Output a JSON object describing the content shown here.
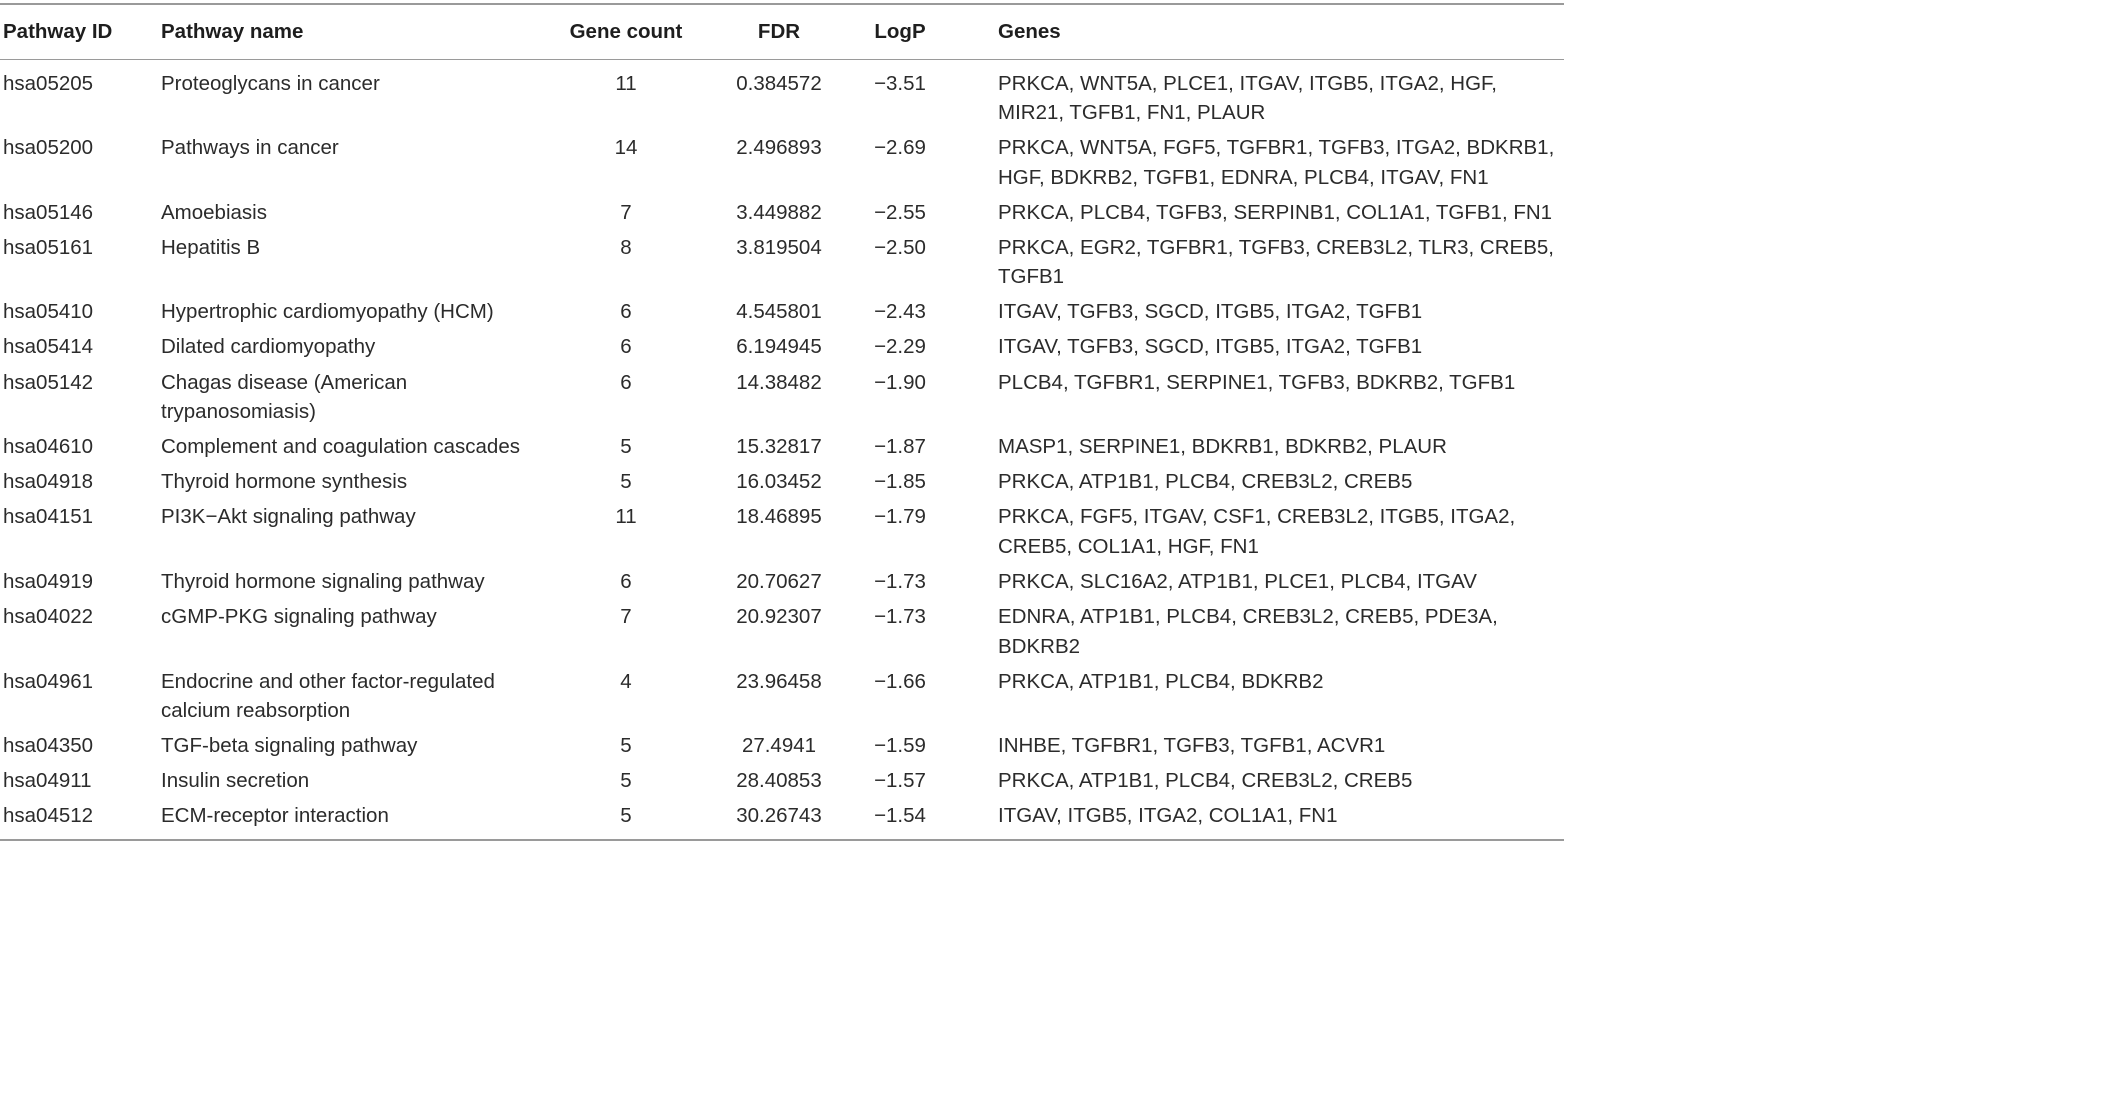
{
  "table": {
    "headers": {
      "id": "Pathway ID",
      "name": "Pathway name",
      "count": "Gene count",
      "fdr": "FDR",
      "logp": "LogP",
      "genes": "Genes"
    },
    "rows": [
      {
        "id": "hsa05205",
        "name": "Proteoglycans in cancer",
        "count": "11",
        "fdr": "0.384572",
        "logp": "−3.51",
        "genes": "PRKCA, WNT5A, PLCE1, ITGAV, ITGB5, ITGA2, HGF, MIR21, TGFB1, FN1, PLAUR"
      },
      {
        "id": "hsa05200",
        "name": "Pathways in cancer",
        "count": "14",
        "fdr": "2.496893",
        "logp": "−2.69",
        "genes": "PRKCA, WNT5A, FGF5, TGFBR1, TGFB3, ITGA2, BDKRB1, HGF, BDKRB2, TGFB1, EDNRA, PLCB4, ITGAV, FN1"
      },
      {
        "id": "hsa05146",
        "name": "Amoebiasis",
        "count": "7",
        "fdr": "3.449882",
        "logp": "−2.55",
        "genes": "PRKCA, PLCB4, TGFB3, SERPINB1, COL1A1, TGFB1, FN1"
      },
      {
        "id": "hsa05161",
        "name": "Hepatitis B",
        "count": "8",
        "fdr": "3.819504",
        "logp": "−2.50",
        "genes": "PRKCA, EGR2, TGFBR1, TGFB3, CREB3L2, TLR3, CREB5, TGFB1"
      },
      {
        "id": "hsa05410",
        "name": "Hypertrophic cardiomyopathy (HCM)",
        "count": "6",
        "fdr": "4.545801",
        "logp": "−2.43",
        "genes": "ITGAV, TGFB3, SGCD, ITGB5, ITGA2, TGFB1"
      },
      {
        "id": "hsa05414",
        "name": "Dilated cardiomyopathy",
        "count": "6",
        "fdr": "6.194945",
        "logp": "−2.29",
        "genes": "ITGAV, TGFB3, SGCD, ITGB5, ITGA2, TGFB1"
      },
      {
        "id": "hsa05142",
        "name": "Chagas disease (American trypanosomiasis)",
        "count": "6",
        "fdr": "14.38482",
        "logp": "−1.90",
        "genes": "PLCB4, TGFBR1, SERPINE1, TGFB3, BDKRB2, TGFB1"
      },
      {
        "id": "hsa04610",
        "name": "Complement and coagulation cascades",
        "count": "5",
        "fdr": "15.32817",
        "logp": "−1.87",
        "genes": "MASP1, SERPINE1, BDKRB1, BDKRB2, PLAUR"
      },
      {
        "id": "hsa04918",
        "name": "Thyroid hormone synthesis",
        "count": "5",
        "fdr": "16.03452",
        "logp": "−1.85",
        "genes": "PRKCA, ATP1B1, PLCB4, CREB3L2, CREB5"
      },
      {
        "id": "hsa04151",
        "name": "PI3K−Akt signaling pathway",
        "count": "11",
        "fdr": "18.46895",
        "logp": "−1.79",
        "genes": "PRKCA, FGF5, ITGAV, CSF1, CREB3L2, ITGB5, ITGA2, CREB5, COL1A1, HGF, FN1"
      },
      {
        "id": "hsa04919",
        "name": "Thyroid hormone signaling pathway",
        "count": "6",
        "fdr": "20.70627",
        "logp": "−1.73",
        "genes": "PRKCA, SLC16A2, ATP1B1, PLCE1, PLCB4, ITGAV"
      },
      {
        "id": "hsa04022",
        "name": "cGMP-PKG signaling pathway",
        "count": "7",
        "fdr": "20.92307",
        "logp": "−1.73",
        "genes": "EDNRA, ATP1B1, PLCB4, CREB3L2, CREB5, PDE3A, BDKRB2"
      },
      {
        "id": "hsa04961",
        "name": "Endocrine and other factor-regulated calcium reabsorption",
        "count": "4",
        "fdr": "23.96458",
        "logp": "−1.66",
        "genes": "PRKCA, ATP1B1, PLCB4, BDKRB2"
      },
      {
        "id": "hsa04350",
        "name": "TGF-beta signaling pathway",
        "count": "5",
        "fdr": "27.4941",
        "logp": "−1.59",
        "genes": "INHBE, TGFBR1, TGFB3, TGFB1, ACVR1"
      },
      {
        "id": "hsa04911",
        "name": "Insulin secretion",
        "count": "5",
        "fdr": "28.40853",
        "logp": "−1.57",
        "genes": "PRKCA, ATP1B1, PLCB4, CREB3L2, CREB5"
      },
      {
        "id": "hsa04512",
        "name": "ECM-receptor interaction",
        "count": "5",
        "fdr": "30.26743",
        "logp": "−1.54",
        "genes": "ITGAV, ITGB5, ITGA2, COL1A1, FN1"
      }
    ]
  }
}
